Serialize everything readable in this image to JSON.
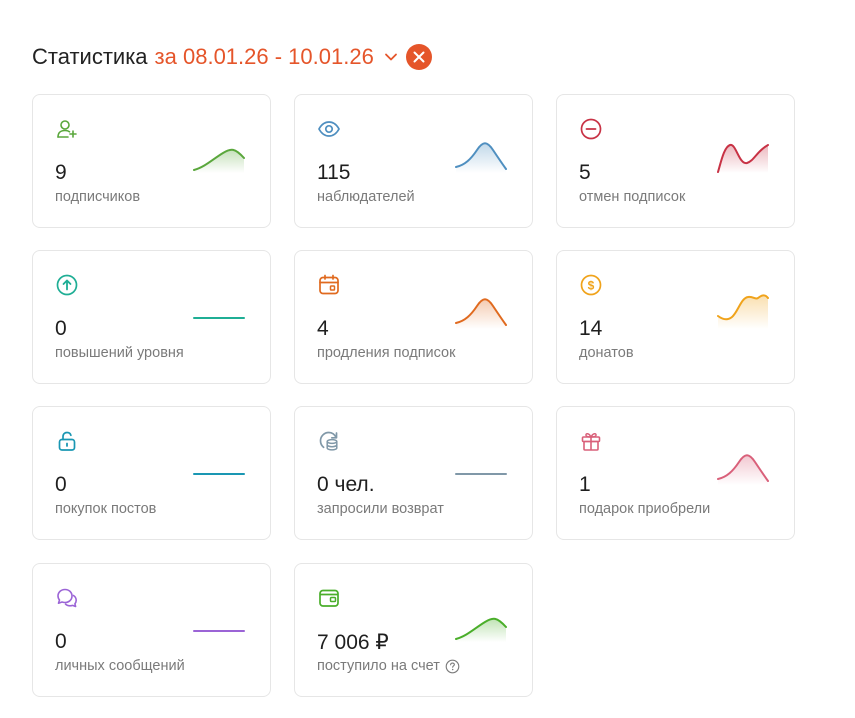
{
  "header": {
    "title": "Статистика",
    "period": "за 08.01.26 - 10.01.26"
  },
  "colors": {
    "accent": "#e5552a"
  },
  "cards": [
    {
      "value": "9",
      "label": "подписчиков",
      "icon": "user-plus-icon",
      "color": "#5aa73c",
      "trend": "rise"
    },
    {
      "value": "115",
      "label": "наблюдателей",
      "icon": "eye-icon",
      "color": "#4f8fc0",
      "trend": "peak"
    },
    {
      "value": "5",
      "label": "отмен подписок",
      "icon": "minus-circle-icon",
      "color": "#c83245",
      "trend": "wave"
    },
    {
      "value": "0",
      "label": "повышений уровня",
      "icon": "arrow-up-circle-icon",
      "color": "#1fae95",
      "trend": "flat"
    },
    {
      "value": "4",
      "label": "продления подписок",
      "icon": "calendar-icon",
      "color": "#e06a1f",
      "trend": "peak"
    },
    {
      "value": "14",
      "label": "донатов",
      "icon": "coin-icon",
      "color": "#f0a31b",
      "trend": "wave-up"
    },
    {
      "value": "0",
      "label": "покупок постов",
      "icon": "lock-open-icon",
      "color": "#1a97b3",
      "trend": "flat"
    },
    {
      "value": "0 чел.",
      "label": "запросили возврат",
      "icon": "refund-icon",
      "color": "#8098a8",
      "trend": "flat"
    },
    {
      "value": "1",
      "label": "подарок приобрели",
      "icon": "gift-icon",
      "color": "#d9607a",
      "trend": "peak"
    },
    {
      "value": "0",
      "label": "личных сообщений",
      "icon": "chat-icon",
      "color": "#9b64d6",
      "trend": "flat"
    },
    {
      "value": "7 006 ₽",
      "label": "поступило на счет",
      "icon": "wallet-icon",
      "color": "#4aae2a",
      "trend": "rise",
      "help": true
    }
  ]
}
